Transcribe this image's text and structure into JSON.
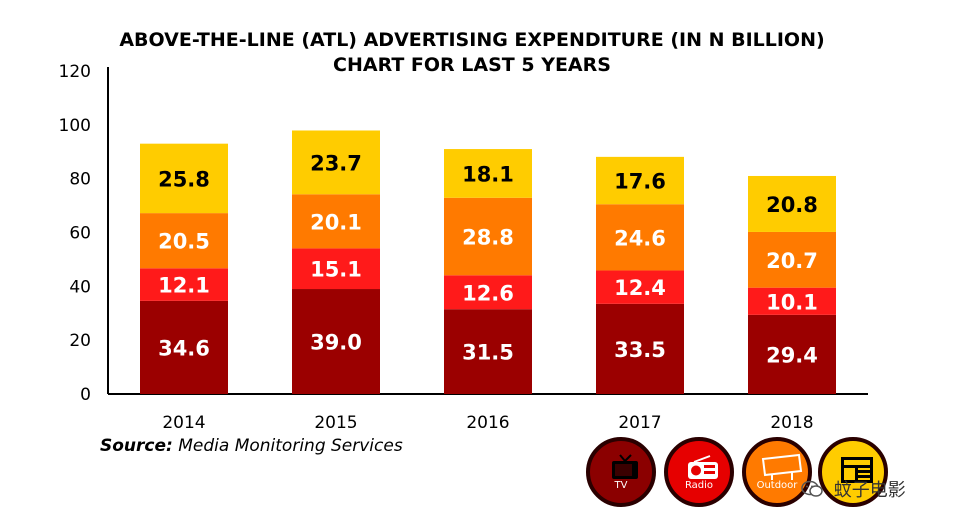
{
  "chart_data": {
    "type": "bar",
    "stacked": true,
    "title_lines": [
      "ABOVE-THE-LINE (ATL) ADVERTISING EXPENDITURE (IN N BILLION)",
      "CHART FOR LAST 5 YEARS"
    ],
    "categories": [
      "2014",
      "2015",
      "2016",
      "2017",
      "2018"
    ],
    "series": [
      {
        "key": "tv",
        "values": [
          34.6,
          39.0,
          31.5,
          33.5,
          29.4
        ],
        "color": "#9b0000",
        "label_color": "#ffffff"
      },
      {
        "key": "radio",
        "values": [
          12.1,
          15.1,
          12.6,
          12.4,
          10.1
        ],
        "color": "#ff1a1a",
        "label_color": "#ffffff"
      },
      {
        "key": "outdoor",
        "values": [
          20.5,
          20.1,
          28.8,
          24.6,
          20.7
        ],
        "color": "#ff7a00",
        "label_color": "#ffffff"
      },
      {
        "key": "print",
        "values": [
          25.8,
          23.7,
          18.1,
          17.6,
          20.8
        ],
        "color": "#ffcc00",
        "label_color": "#000000"
      }
    ],
    "ylim": [
      0,
      120
    ],
    "yticks": [
      0,
      20,
      40,
      60,
      80,
      100,
      120
    ],
    "grid": false
  },
  "source": {
    "prefix": "Source:",
    "text": "Media Monitoring Services"
  },
  "legend": [
    {
      "label": "TV",
      "icon": "tv-icon",
      "color": "#8b0000"
    },
    {
      "label": "Radio",
      "icon": "radio-icon",
      "color": "#e60000"
    },
    {
      "label": "Outdoor",
      "icon": "billboard-icon",
      "color": "#ff7a00"
    },
    {
      "label": "",
      "icon": "newspaper-icon",
      "color": "#ffcc00"
    }
  ],
  "watermark": {
    "text": "蚊子电影",
    "icon": "wechat-icon"
  }
}
